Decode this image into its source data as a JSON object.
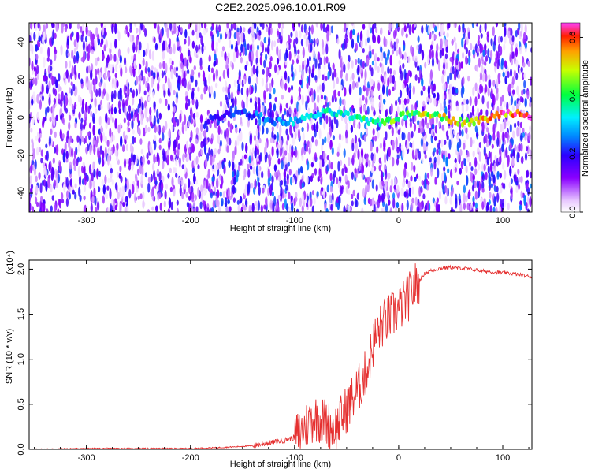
{
  "title": "C2E2.2025.096.10.01.R09",
  "colors": {
    "signal_line": "#e53030",
    "frame": "#000000"
  },
  "chart_data": [
    {
      "type": "heatmap",
      "name": "spectrogram",
      "xlabel": "Height of straight line (km)",
      "ylabel": "Frequency (Hz)",
      "xlim": [
        -355,
        128
      ],
      "ylim": [
        -50,
        50
      ],
      "x_ticks": [
        -300,
        -200,
        -100,
        0,
        100
      ],
      "y_ticks": [
        -40,
        -20,
        0,
        20,
        40
      ],
      "colorbar": {
        "label": "Normalized spectral amplitude",
        "range": [
          0.0,
          0.65
        ],
        "ticks": [
          "0.0",
          "0.2",
          "0.4",
          "0.6"
        ],
        "colormap": "rainbow (violet-blue-cyan-green-yellow-red-magenta)"
      },
      "features": {
        "noise_region_x": [
          -355,
          -180
        ],
        "carrier_line_frequency_hz": 0,
        "carrier_visible_from_x": -185,
        "peak_amplitude": 0.65
      }
    },
    {
      "type": "line",
      "name": "snr",
      "xlabel": "Height of straight line (km)",
      "ylabel": "SNR (10 * v/v)",
      "y_multiplier": "(x10⁴)",
      "xlim": [
        -355,
        128
      ],
      "ylim": [
        0,
        2.1
      ],
      "x_ticks": [
        -300,
        -200,
        -100,
        0,
        100
      ],
      "y_ticks": [
        "0.0",
        "0.5",
        "1.0",
        "1.5",
        "2.0"
      ],
      "series": [
        {
          "x": [
            -355,
            -300,
            -250,
            -200,
            -170,
            -155,
            -140,
            -130,
            -120,
            -110,
            -100,
            -95,
            -90,
            -85,
            -80,
            -75,
            -70,
            -65,
            -60,
            -55,
            -50,
            -45,
            -40,
            -35,
            -30,
            -25,
            -20,
            -15,
            -10,
            -5,
            0,
            5,
            10,
            15,
            20,
            25,
            30,
            40,
            50,
            60,
            70,
            80,
            90,
            100,
            110,
            120,
            128
          ],
          "y": [
            0.0,
            0.01,
            0.01,
            0.01,
            0.02,
            0.03,
            0.04,
            0.06,
            0.08,
            0.1,
            0.13,
            0.18,
            0.25,
            0.32,
            0.35,
            0.33,
            0.3,
            0.26,
            0.24,
            0.35,
            0.45,
            0.55,
            0.65,
            0.75,
            0.9,
            1.15,
            1.3,
            1.4,
            1.45,
            1.5,
            1.55,
            1.62,
            1.7,
            1.8,
            1.88,
            1.95,
            1.98,
            2.01,
            2.02,
            2.01,
            2.0,
            1.98,
            1.97,
            1.96,
            1.95,
            1.93,
            1.91
          ]
        }
      ]
    }
  ]
}
